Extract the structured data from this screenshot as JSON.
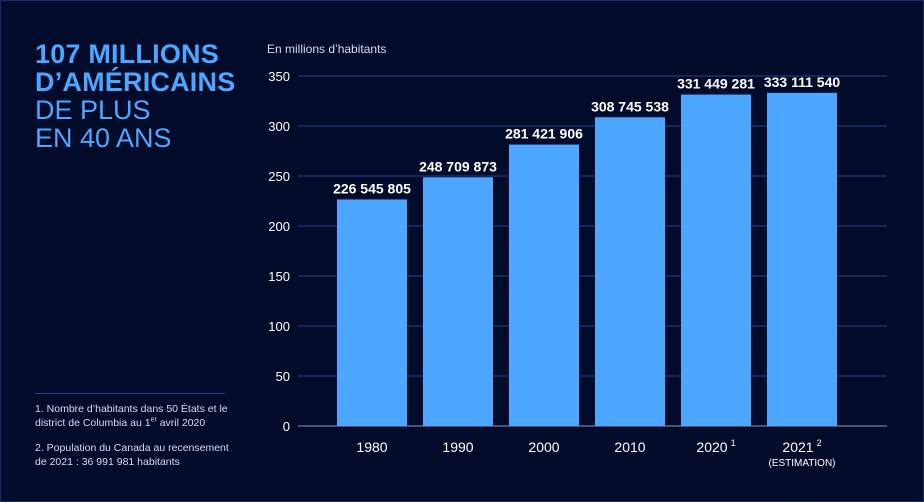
{
  "headline": {
    "line1": "107 MILLIONS",
    "line2": "D’AMÉRICAINS",
    "line3": "DE PLUS",
    "line4": "EN 40 ANS"
  },
  "notes": {
    "note1_prefix": "1. Nombre d’habitants dans 50 États et le district de Columbia au 1",
    "note1_sup": "er",
    "note1_suffix": " avril 2020",
    "note2": "2. Population du Canada au recensement de 2021 : 36 991 981 habitants"
  },
  "colors": {
    "background": "#020b2a",
    "bar": "#4da6ff",
    "accent": "#4da6ff",
    "grid": "#2a3f8a"
  },
  "chart_data": {
    "type": "bar",
    "ylabel": "En millions d’habitants",
    "ylim": [
      0,
      350
    ],
    "yticks": [
      0,
      50,
      100,
      150,
      200,
      250,
      300,
      350
    ],
    "yticks_labels": [
      "0",
      "50",
      "100",
      "150",
      "200",
      "250",
      "300",
      "350"
    ],
    "grid": true,
    "categories": [
      "1980",
      "1990",
      "2000",
      "2010",
      "2020",
      "2021"
    ],
    "category_superscripts": [
      "",
      "",
      "",
      "",
      "1",
      "2"
    ],
    "category_sublabels": [
      "",
      "",
      "",
      "",
      "",
      "(ESTIMATION)"
    ],
    "values": [
      226.545805,
      248.709873,
      281.421906,
      308.745538,
      331.449281,
      333.11154
    ],
    "value_labels": [
      "226 545 805",
      "248 709 873",
      "281 421 906",
      "308 745 538",
      "331 449 281",
      "333 111 540"
    ]
  }
}
